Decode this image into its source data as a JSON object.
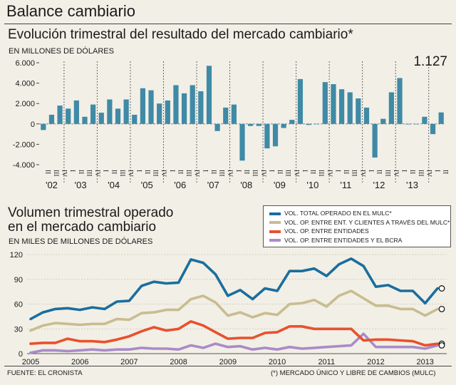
{
  "header": {
    "title": "Balance cambiario"
  },
  "top_chart": {
    "subtitle": "Evolución trimestral del resultado del mercado cambiario*",
    "unit": "EN MILLONES DE DÓLARES",
    "callout": "1.127"
  },
  "bottom_chart": {
    "subtitle_line1": "Volumen trimestral operado",
    "subtitle_line2": "en el mercado cambiario",
    "unit": "EN MILES DE MILLONES DE DÓLARES"
  },
  "footer": {
    "source": "FUENTE: EL CRONISTA",
    "note": "(*) MERCADO ÚNICO Y LIBRE DE CAMBIOS (MULC)"
  },
  "colors": {
    "bar": "#3f8aa6",
    "series1": "#1a6e9e",
    "series2": "#c8bd90",
    "series3": "#e8512d",
    "series4": "#a98bc9"
  },
  "chart_data": [
    {
      "type": "bar",
      "title": "Evolución trimestral del resultado del mercado cambiario*",
      "ylabel": "EN MILLONES DE DÓLARES",
      "ylim": [
        -4000,
        6000
      ],
      "yticks": [
        6000,
        4000,
        2000,
        0,
        -2000,
        -4000
      ],
      "ytick_labels": [
        "6.000",
        "4.000",
        "2.000",
        "0",
        "-2.000",
        "-4.000"
      ],
      "grid": false,
      "quarter_labels": [
        "II",
        "III",
        "IV",
        "I",
        "II",
        "III",
        "IV",
        "I",
        "II",
        "III",
        "IV",
        "I",
        "II",
        "III",
        "IV",
        "I",
        "II",
        "III",
        "IV",
        "I",
        "II",
        "III",
        "IV",
        "I",
        "II",
        "III",
        "IV",
        "I",
        "II",
        "III",
        "IV",
        "I",
        "II",
        "III",
        "IV",
        "I",
        "II",
        "III",
        "IV",
        "I",
        "II",
        "III",
        "IV",
        "I",
        "II",
        "III",
        "IV",
        "I",
        "II"
      ],
      "year_labels": [
        "'02",
        "'03",
        "'04",
        "'05",
        "'06",
        "'07",
        "'08",
        "'09",
        "'10",
        "'11",
        "'12",
        "'13"
      ],
      "values": [
        -600,
        900,
        1800,
        1500,
        2300,
        700,
        1900,
        1100,
        2400,
        1500,
        2400,
        900,
        3500,
        3300,
        2000,
        2300,
        3800,
        3000,
        3800,
        3200,
        5700,
        -700,
        1600,
        1900,
        -3600,
        -200,
        -200,
        -2400,
        -2200,
        -400,
        400,
        4400,
        -100,
        0,
        4100,
        3900,
        3400,
        3100,
        2500,
        1600,
        -3300,
        500,
        3100,
        4500,
        -50,
        0,
        700,
        -1000,
        1127
      ]
    },
    {
      "type": "line",
      "title": "Volumen trimestral operado en el mercado cambiario",
      "ylabel": "EN MILES DE MILLONES DE DÓLARES",
      "ylim": [
        0,
        120
      ],
      "yticks": [
        0,
        30,
        60,
        90,
        120
      ],
      "x_labels": [
        "2005",
        "2006",
        "2007",
        "2008",
        "2009",
        "2010",
        "2011",
        "2012",
        "2013"
      ],
      "x_start": 2005.0,
      "x_step": 0.25,
      "grid": true,
      "series": [
        {
          "name": "VOL. TOTAL OPERADO EN EL MULC*",
          "color": "#1a6e9e",
          "values": [
            42,
            50,
            54,
            55,
            53,
            56,
            54,
            63,
            64,
            82,
            87,
            85,
            86,
            114,
            110,
            96,
            70,
            77,
            66,
            79,
            76,
            100,
            100,
            103,
            94,
            108,
            115,
            106,
            81,
            83,
            76,
            76,
            61,
            79
          ]
        },
        {
          "name": "VOL. OP. ENTRE ENT. Y CLIENTES A TRAVÉS DEL MULC*",
          "color": "#c8bd90",
          "values": [
            28,
            34,
            37,
            36,
            35,
            36,
            36,
            42,
            41,
            49,
            50,
            53,
            53,
            66,
            70,
            62,
            46,
            50,
            44,
            49,
            47,
            60,
            61,
            65,
            57,
            70,
            76,
            67,
            58,
            58,
            54,
            54,
            46,
            54
          ]
        },
        {
          "name": "VOL. OP. ENTRE ENTIDADES",
          "color": "#e8512d",
          "values": [
            12,
            13,
            13,
            18,
            15,
            15,
            14,
            17,
            21,
            27,
            32,
            28,
            30,
            39,
            34,
            26,
            18,
            19,
            19,
            25,
            26,
            33,
            33,
            30,
            30,
            30,
            30,
            16,
            17,
            17,
            16,
            15,
            10,
            12
          ]
        },
        {
          "name": "VOL. OP. ENTRE ENTIDADES Y EL BCRA",
          "color": "#a98bc9",
          "values": [
            1,
            4,
            4,
            3,
            4,
            5,
            4,
            5,
            5,
            7,
            6,
            6,
            5,
            10,
            7,
            12,
            8,
            9,
            5,
            7,
            5,
            8,
            6,
            7,
            8,
            9,
            10,
            24,
            8,
            8,
            8,
            8,
            6,
            10
          ]
        }
      ]
    }
  ]
}
